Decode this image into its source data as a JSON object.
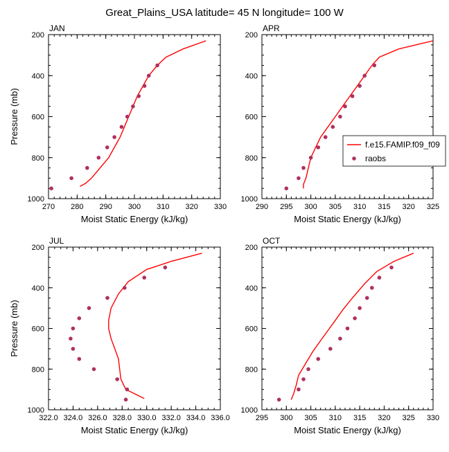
{
  "title": "Great_Plains_USA  latitude= 45 N longitude= 100 W",
  "colors": {
    "line": "#ff0000",
    "dots": "#b03060",
    "axes": "#000000"
  },
  "legend": {
    "placement": "right-middle of APR panel",
    "line_label": "f.e15.FAMIP.f09_f09",
    "dots_label": "raobs"
  },
  "chart_data": [
    {
      "type": "line+scatter",
      "panel_label": "JAN",
      "xlabel": "Moist Static Energy (kJ/kg)",
      "ylabel": "Pressure (mb)",
      "xlim": [
        270,
        330
      ],
      "ylim": [
        1000,
        200
      ],
      "x_ticks": [
        "270",
        "280",
        "290",
        "300",
        "310",
        "320",
        "330"
      ],
      "x_minor_step": 2,
      "y_ticks": [
        "200",
        "400",
        "600",
        "800",
        "1000"
      ],
      "series": [
        {
          "name": "f.e15.FAMIP.f09_f09",
          "kind": "line",
          "points": [
            [
              325,
              230
            ],
            [
              317,
              270
            ],
            [
              311,
              310
            ],
            [
              308,
              350
            ],
            [
              305,
              400
            ],
            [
              303,
              450
            ],
            [
              301,
              500
            ],
            [
              299.5,
              550
            ],
            [
              298,
              600
            ],
            [
              296.5,
              650
            ],
            [
              295,
              700
            ],
            [
              293,
              750
            ],
            [
              291,
              800
            ],
            [
              288,
              850
            ],
            [
              285,
              900
            ],
            [
              283,
              925
            ],
            [
              281,
              940
            ]
          ]
        },
        {
          "name": "raobs",
          "kind": "scatter",
          "points": [
            [
              308,
              350
            ],
            [
              305,
              400
            ],
            [
              303.5,
              450
            ],
            [
              301.5,
              500
            ],
            [
              299.5,
              550
            ],
            [
              297.5,
              600
            ],
            [
              295.5,
              650
            ],
            [
              293,
              700
            ],
            [
              290.5,
              750
            ],
            [
              287.5,
              800
            ],
            [
              283.5,
              850
            ],
            [
              278,
              900
            ],
            [
              271,
              950
            ]
          ]
        }
      ]
    },
    {
      "type": "line+scatter",
      "panel_label": "APR",
      "xlabel": "Moist Static Energy (kJ/kg)",
      "ylabel": "",
      "xlim": [
        290,
        325
      ],
      "ylim": [
        1000,
        200
      ],
      "x_ticks": [
        "290",
        "295",
        "300",
        "305",
        "310",
        "315",
        "320",
        "325"
      ],
      "x_minor_step": 1,
      "y_ticks": [
        "200",
        "400",
        "600",
        "800",
        "1000"
      ],
      "series": [
        {
          "name": "f.e15.FAMIP.f09_f09",
          "kind": "line",
          "points": [
            [
              325,
              230
            ],
            [
              318,
              270
            ],
            [
              314,
              310
            ],
            [
              312.5,
              350
            ],
            [
              311,
              400
            ],
            [
              309.5,
              450
            ],
            [
              308,
              500
            ],
            [
              306.5,
              550
            ],
            [
              305,
              600
            ],
            [
              303.5,
              650
            ],
            [
              302,
              700
            ],
            [
              301,
              750
            ],
            [
              300,
              800
            ],
            [
              299.5,
              850
            ],
            [
              299,
              900
            ],
            [
              298.5,
              930
            ],
            [
              298.5,
              950
            ]
          ]
        },
        {
          "name": "raobs",
          "kind": "scatter",
          "points": [
            [
              313,
              350
            ],
            [
              311,
              400
            ],
            [
              310,
              450
            ],
            [
              308.5,
              500
            ],
            [
              307,
              550
            ],
            [
              306,
              600
            ],
            [
              304.5,
              650
            ],
            [
              303,
              700
            ],
            [
              301.5,
              750
            ],
            [
              300,
              800
            ],
            [
              298.5,
              850
            ],
            [
              297.5,
              900
            ],
            [
              295,
              950
            ]
          ]
        }
      ]
    },
    {
      "type": "line+scatter",
      "panel_label": "JUL",
      "xlabel": "Moist Static Energy (kJ/kg)",
      "ylabel": "Pressure (mb)",
      "xlim": [
        322,
        336
      ],
      "ylim": [
        1000,
        200
      ],
      "x_ticks": [
        "322.0",
        "324.0",
        "326.0",
        "328.0",
        "330.0",
        "332.0",
        "334.0",
        "336.0"
      ],
      "x_minor_step": 0.5,
      "y_ticks": [
        "200",
        "400",
        "600",
        "800",
        "1000"
      ],
      "series": [
        {
          "name": "f.e15.FAMIP.f09_f09",
          "kind": "line",
          "points": [
            [
              334.5,
              230
            ],
            [
              332,
              270
            ],
            [
              330,
              310
            ],
            [
              328.5,
              370
            ],
            [
              327.7,
              430
            ],
            [
              327.1,
              500
            ],
            [
              326.9,
              560
            ],
            [
              326.9,
              600
            ],
            [
              327.1,
              650
            ],
            [
              327.4,
              700
            ],
            [
              327.7,
              750
            ],
            [
              327.8,
              800
            ],
            [
              327.9,
              850
            ],
            [
              328.3,
              900
            ],
            [
              329.8,
              945
            ]
          ]
        },
        {
          "name": "raobs",
          "kind": "scatter",
          "points": [
            [
              331.5,
              300
            ],
            [
              329.8,
              350
            ],
            [
              328.2,
              400
            ],
            [
              326.8,
              450
            ],
            [
              325.3,
              500
            ],
            [
              324.5,
              550
            ],
            [
              324,
              600
            ],
            [
              323.8,
              650
            ],
            [
              324,
              700
            ],
            [
              324.5,
              750
            ],
            [
              325.7,
              800
            ],
            [
              327.6,
              850
            ],
            [
              328.4,
              900
            ],
            [
              328.3,
              950
            ]
          ]
        }
      ]
    },
    {
      "type": "line+scatter",
      "panel_label": "OCT",
      "xlabel": "Moist Static Energy (kJ/kg)",
      "ylabel": "",
      "xlim": [
        295,
        330
      ],
      "ylim": [
        1000,
        200
      ],
      "x_ticks": [
        "295",
        "300",
        "305",
        "310",
        "315",
        "320",
        "325",
        "330"
      ],
      "x_minor_step": 1,
      "y_ticks": [
        "200",
        "400",
        "600",
        "800",
        "1000"
      ],
      "series": [
        {
          "name": "f.e15.FAMIP.f09_f09",
          "kind": "line",
          "points": [
            [
              326,
              230
            ],
            [
              322,
              270
            ],
            [
              318.5,
              320
            ],
            [
              316,
              380
            ],
            [
              313.5,
              450
            ],
            [
              311.5,
              510
            ],
            [
              310,
              560
            ],
            [
              308.5,
              610
            ],
            [
              307,
              660
            ],
            [
              305.5,
              710
            ],
            [
              304,
              770
            ],
            [
              302.5,
              830
            ],
            [
              302,
              880
            ],
            [
              301.5,
              920
            ],
            [
              301,
              950
            ]
          ]
        },
        {
          "name": "raobs",
          "kind": "scatter",
          "points": [
            [
              321.5,
              300
            ],
            [
              319,
              350
            ],
            [
              317.5,
              400
            ],
            [
              316.5,
              450
            ],
            [
              315,
              500
            ],
            [
              314,
              550
            ],
            [
              312.5,
              600
            ],
            [
              311,
              650
            ],
            [
              309,
              700
            ],
            [
              306.5,
              750
            ],
            [
              304.5,
              800
            ],
            [
              303.5,
              850
            ],
            [
              302.5,
              900
            ],
            [
              298.5,
              950
            ]
          ]
        }
      ]
    }
  ]
}
